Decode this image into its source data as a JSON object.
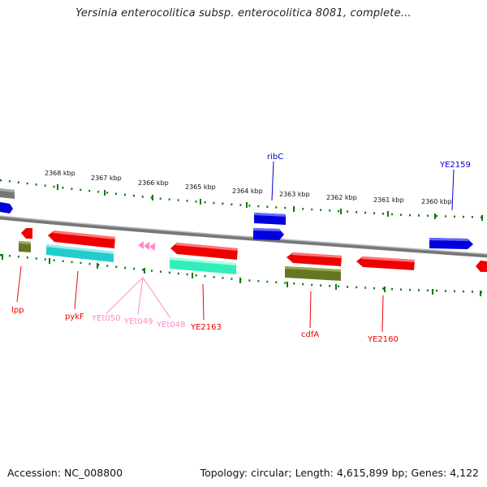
{
  "title": "Yersinia enterocolitica subsp. enterocolitica 8081, complete...",
  "footer": {
    "accession": "Accession: NC_008800",
    "topology": "Topology: circular; Length: 4,615,899 bp; Genes: 4,122"
  },
  "ruler": {
    "labels": [
      "2368 kbp",
      "2367 kbp",
      "2366 kbp",
      "2365 kbp",
      "2364 kbp",
      "2363 kbp",
      "2362 kbp",
      "2361 kbp",
      "2360 kbp"
    ]
  },
  "gene_labels": {
    "lpp": "lpp",
    "pykF": "pykF",
    "yet050": "YEt050",
    "yet049": "YEt049",
    "yet048": "YEt048",
    "ye2163": "YE2163",
    "cdfA": "cdfA",
    "ye2160": "YE2160",
    "ribC": "ribC",
    "ye2159": "YE2159"
  },
  "colors": {
    "forward_gene": "#0000ee",
    "reverse_gene": "#ee0000",
    "trna": "#ff88cc",
    "rrna_cyan": "#22cccc",
    "rrna_green": "#33eebb",
    "olive": "#667722",
    "tick_green": "#117711",
    "backbone": "#888888"
  }
}
